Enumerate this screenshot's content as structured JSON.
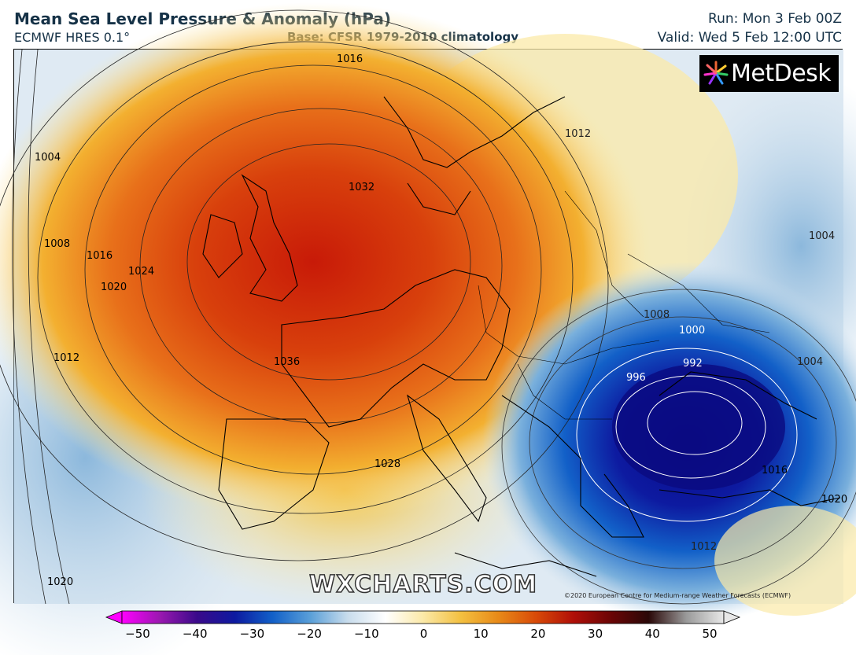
{
  "header": {
    "title": "Mean Sea Level Pressure & Anomaly (hPa)",
    "model": "ECMWF HRES 0.1°",
    "base": "Base: CFSR 1979-2010 climatology",
    "run": "Run: Mon 3 Feb 00Z",
    "valid": "Valid: Wed 5 Feb 12:00 UTC"
  },
  "logo": {
    "text": "MetDesk"
  },
  "watermark": "WXCHARTS.COM",
  "copyright": "©2020 European Centre for Medium-range Weather Forecasts (ECMWF)",
  "isobar_labels": [
    "1016",
    "1004",
    "1008",
    "1016",
    "1020",
    "1024",
    "1012",
    "1032",
    "1036",
    "1028",
    "1020",
    "1004",
    "1008",
    "1000",
    "992",
    "996",
    "1004",
    "1016",
    "1012",
    "1020",
    "1012"
  ],
  "colorbar": {
    "ticks": [
      "−50",
      "−40",
      "−30",
      "−20",
      "−10",
      "0",
      "10",
      "20",
      "30",
      "40",
      "50"
    ],
    "colors": [
      "#ff00ff",
      "#9a18b0",
      "#3a0a8a",
      "#0d1aa0",
      "#1260c8",
      "#5a9fd8",
      "#c8dcec",
      "#ffffff",
      "#fbe9a8",
      "#f3c040",
      "#e88a18",
      "#d84a08",
      "#b00f08",
      "#6a0505",
      "#2a0808",
      "#9a9a9a",
      "#e8e8e8"
    ]
  },
  "colors": {
    "high_core": "#c81a08",
    "high_mid": "#e8701a",
    "high_outer": "#f3c040",
    "low_core": "#0a0a8a",
    "low_mid": "#1050c0",
    "neutral": "#ffffff"
  }
}
